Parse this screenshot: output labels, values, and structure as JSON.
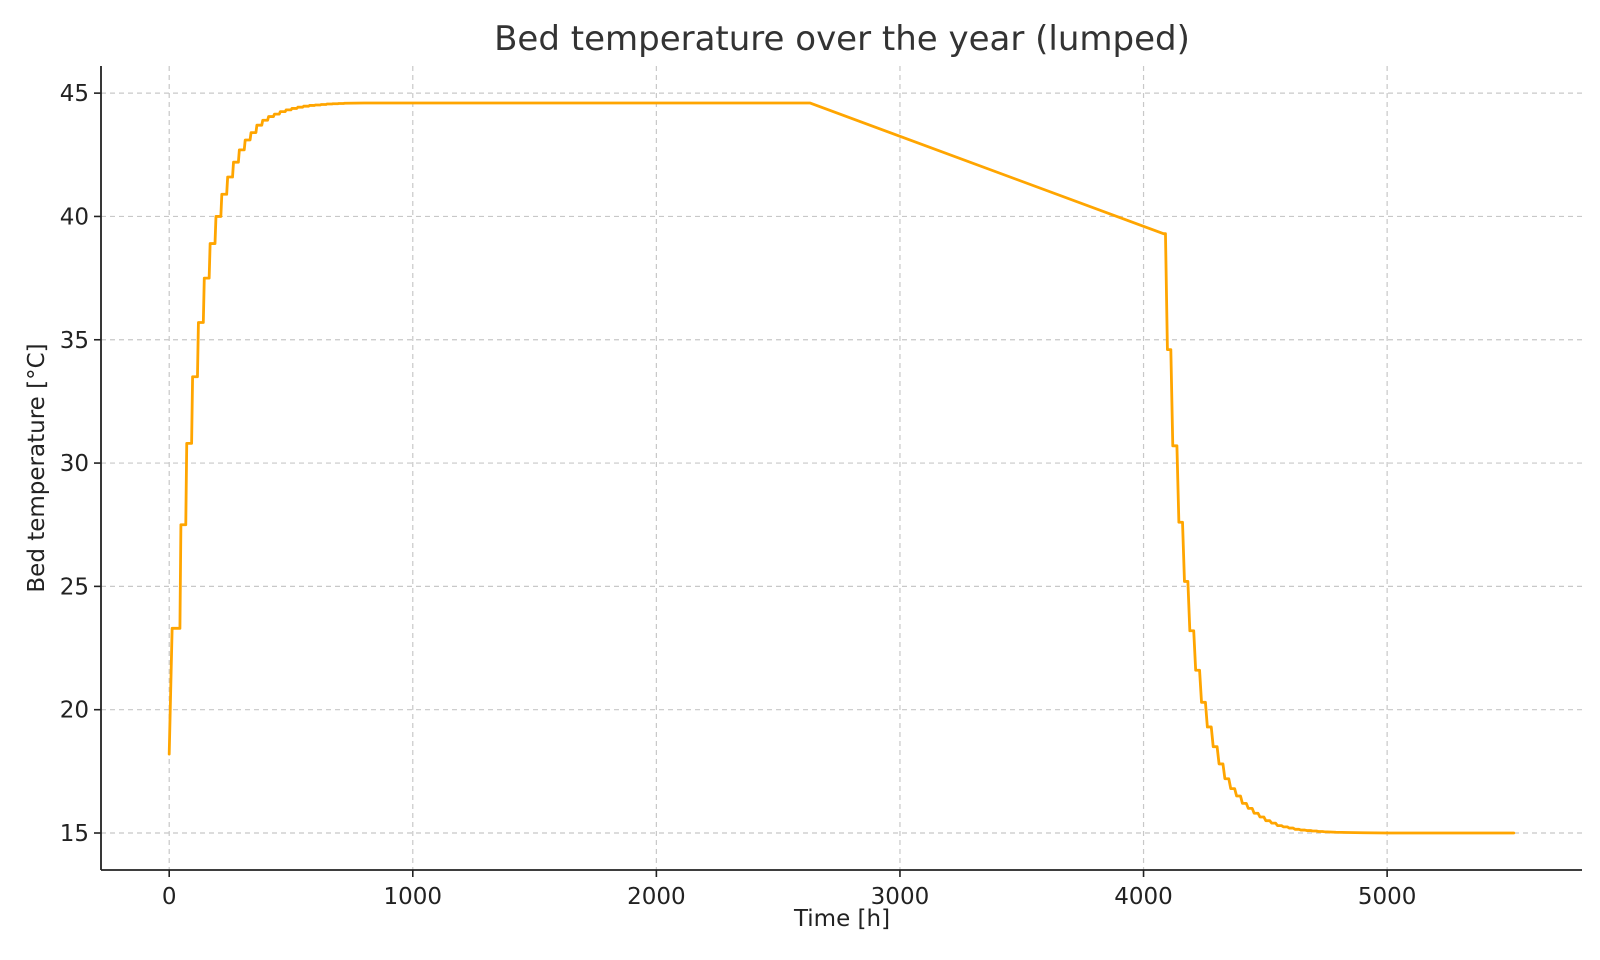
{
  "chart_data": {
    "type": "line",
    "title": "Bed temperature over the year (lumped)",
    "xlabel": "Time [h]",
    "ylabel": "Bed temperature [°C]",
    "xlim": [
      -280,
      5800
    ],
    "ylim": [
      13.5,
      46.1
    ],
    "xticks": [
      0,
      1000,
      2000,
      3000,
      4000,
      5000
    ],
    "yticks": [
      15,
      20,
      25,
      30,
      35,
      40,
      45
    ],
    "grid": true,
    "colors": {
      "line": "#ffa500"
    },
    "series": [
      {
        "style": "step",
        "x": [
          0,
          12,
          24,
          48,
          72,
          96,
          120,
          144,
          168,
          192,
          216,
          240,
          264,
          288,
          312,
          336,
          360,
          384,
          408,
          432,
          456,
          480,
          504,
          528,
          552,
          576,
          600,
          624,
          648,
          672,
          696,
          720,
          800,
          900,
          1000,
          1500,
          2000,
          2500,
          2630,
          4082,
          4098,
          4120,
          4145,
          4168,
          4190,
          4214,
          4238,
          4262,
          4286,
          4310,
          4334,
          4358,
          4382,
          4406,
          4430,
          4454,
          4478,
          4502,
          4526,
          4550,
          4574,
          4598,
          4622,
          4646,
          4670,
          4694,
          4718,
          4742,
          4790,
          4838,
          4900,
          5000,
          5100,
          5200,
          5300,
          5400,
          5520
        ],
        "y": [
          18.2,
          23.3,
          23.3,
          27.5,
          30.8,
          33.5,
          35.7,
          37.5,
          38.9,
          40.0,
          40.9,
          41.6,
          42.2,
          42.7,
          43.1,
          43.4,
          43.7,
          43.9,
          44.05,
          44.15,
          44.25,
          44.32,
          44.38,
          44.43,
          44.47,
          44.5,
          44.52,
          44.54,
          44.56,
          44.57,
          44.58,
          44.59,
          44.6,
          44.6,
          44.6,
          44.6,
          44.6,
          44.6,
          44.6,
          39.3,
          34.6,
          30.7,
          27.6,
          25.2,
          23.2,
          21.6,
          20.3,
          19.3,
          18.5,
          17.8,
          17.2,
          16.8,
          16.5,
          16.2,
          16.0,
          15.8,
          15.65,
          15.5,
          15.4,
          15.3,
          15.25,
          15.2,
          15.15,
          15.12,
          15.1,
          15.08,
          15.06,
          15.05,
          15.03,
          15.02,
          15.01,
          15.0,
          15.0,
          15.0,
          15.0,
          15.0,
          15.0
        ]
      }
    ]
  }
}
